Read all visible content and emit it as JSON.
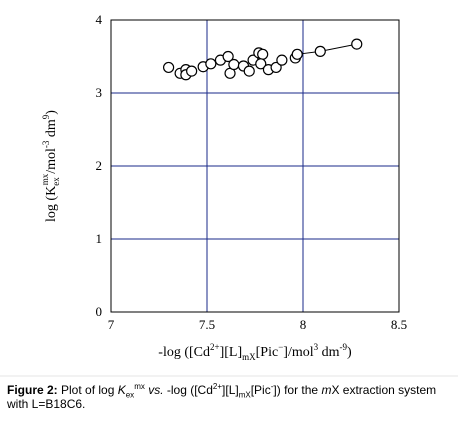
{
  "chart_data": {
    "type": "scatter",
    "x_range": [
      7,
      8.5
    ],
    "y_range": [
      0,
      4
    ],
    "x_ticks": [
      "7",
      "7.5",
      "8",
      "8.5"
    ],
    "y_ticks": [
      "0",
      "1",
      "2",
      "3",
      "4"
    ],
    "grid": true,
    "x_grid": [
      7.5,
      8
    ],
    "y_grid": [
      1,
      2,
      3
    ],
    "marker": "open-circle",
    "points": [
      {
        "x": 7.3,
        "y": 3.35
      },
      {
        "x": 7.36,
        "y": 3.27
      },
      {
        "x": 7.39,
        "y": 3.32
      },
      {
        "x": 7.39,
        "y": 3.25
      },
      {
        "x": 7.42,
        "y": 3.3
      },
      {
        "x": 7.48,
        "y": 3.36
      },
      {
        "x": 7.52,
        "y": 3.4
      },
      {
        "x": 7.57,
        "y": 3.45
      },
      {
        "x": 7.61,
        "y": 3.5
      },
      {
        "x": 7.62,
        "y": 3.27
      },
      {
        "x": 7.64,
        "y": 3.39
      },
      {
        "x": 7.69,
        "y": 3.37
      },
      {
        "x": 7.72,
        "y": 3.3
      },
      {
        "x": 7.74,
        "y": 3.45
      },
      {
        "x": 7.77,
        "y": 3.55
      },
      {
        "x": 7.79,
        "y": 3.53
      },
      {
        "x": 7.78,
        "y": 3.4
      },
      {
        "x": 7.82,
        "y": 3.32
      },
      {
        "x": 7.86,
        "y": 3.35
      },
      {
        "x": 7.89,
        "y": 3.45
      },
      {
        "x": 7.96,
        "y": 3.48
      },
      {
        "x": 7.97,
        "y": 3.53
      },
      {
        "x": 8.09,
        "y": 3.57
      },
      {
        "x": 8.28,
        "y": 3.67
      }
    ],
    "x_axis_title": {
      "pre": "-log ([Cd",
      "sup1": "2+",
      "mid": "][L]",
      "sub1": "mX",
      "mid2": "[Pic",
      "sup2": "−",
      "mid3": "]/mol",
      "sup3": "3",
      "mid4": " dm",
      "sup4": "-9",
      "post": ")"
    },
    "y_axis_title": {
      "pre": "log (K",
      "sub1": "ex",
      "sup1": "mx",
      "mid": "/mol",
      "sup2": "-3",
      "mid2": " dm",
      "sup3": "9",
      "post": ")"
    }
  },
  "caption": {
    "label": "Figure 2:",
    "text1": " Plot of log ",
    "k": "K",
    "k_sub": "ex",
    "k_sup": "mx",
    "text2": " ",
    "vs": "vs.",
    "text3": " -log ([Cd",
    "cd_sup": "2+",
    "text4": "][L]",
    "l_sub": "mX",
    "text5": "[Pic",
    "pic_sup": "-",
    "text6": "]) for the ",
    "m": "m",
    "text7": "X extraction system with L=B18C6."
  }
}
